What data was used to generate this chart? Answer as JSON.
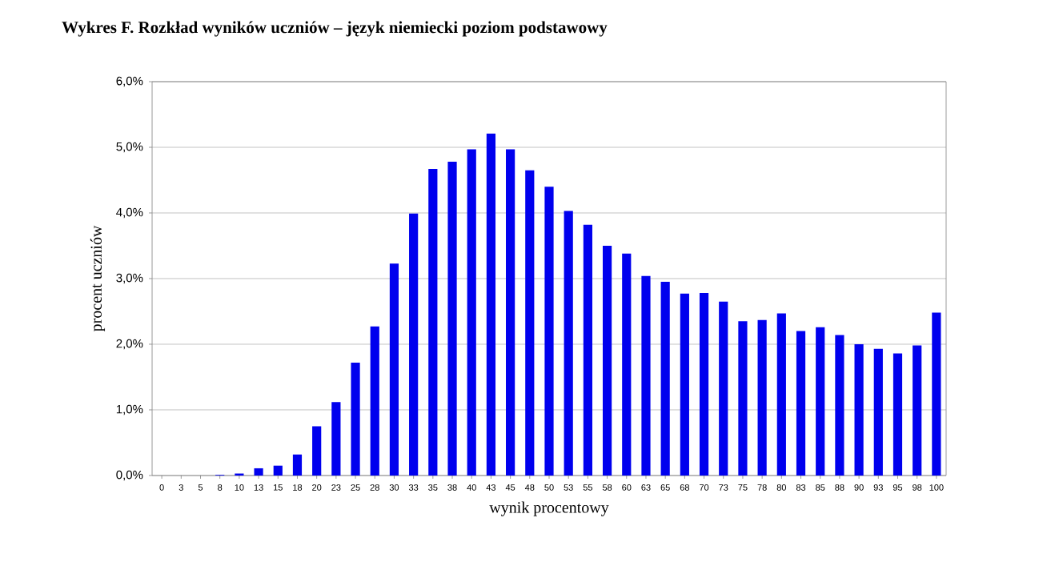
{
  "chart_data": {
    "type": "bar",
    "title": "Wykres F. Rozkład wyników uczniów – język niemiecki poziom podstawowy",
    "xlabel": "wynik procentowy",
    "ylabel": "procent uczniów",
    "categories": [
      "0",
      "3",
      "5",
      "8",
      "10",
      "13",
      "15",
      "18",
      "20",
      "23",
      "25",
      "28",
      "30",
      "33",
      "35",
      "38",
      "40",
      "43",
      "45",
      "48",
      "50",
      "53",
      "55",
      "58",
      "60",
      "63",
      "65",
      "68",
      "70",
      "73",
      "75",
      "78",
      "80",
      "83",
      "85",
      "88",
      "90",
      "93",
      "95",
      "98",
      "100"
    ],
    "values": [
      0,
      0,
      0,
      0.01,
      0.03,
      0.11,
      0.15,
      0.32,
      0.75,
      1.12,
      1.72,
      2.27,
      3.23,
      3.99,
      4.67,
      4.78,
      4.97,
      5.21,
      4.97,
      4.65,
      4.4,
      4.03,
      3.82,
      3.5,
      3.38,
      3.04,
      2.95,
      2.77,
      2.78,
      2.65,
      2.35,
      2.37,
      2.47,
      2.2,
      2.26,
      2.14,
      2.0,
      1.93,
      1.86,
      1.98,
      2.48
    ],
    "color": "#0000ee",
    "ylim": [
      0,
      6
    ],
    "yticks": [
      {
        "value": 0,
        "label": "0,0%"
      },
      {
        "value": 1,
        "label": "1,0%"
      },
      {
        "value": 2,
        "label": "2,0%"
      },
      {
        "value": 3,
        "label": "3,0%"
      },
      {
        "value": 4,
        "label": "4,0%"
      },
      {
        "value": 5,
        "label": "5,0%"
      },
      {
        "value": 6,
        "label": "6,0%"
      }
    ],
    "grid": "y"
  }
}
